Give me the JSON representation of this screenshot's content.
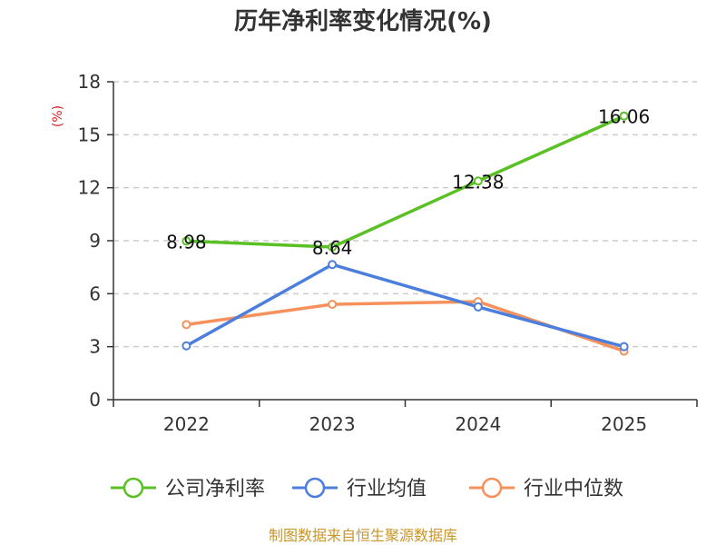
{
  "chart_data": {
    "type": "line",
    "title": "历年净利率变化情况(%)",
    "ylabel": "(%)",
    "xlabel": "",
    "categories": [
      "2022",
      "2023",
      "2024",
      "2025"
    ],
    "ylim": [
      0,
      18
    ],
    "yticks": [
      0,
      3,
      6,
      9,
      12,
      15,
      18
    ],
    "grid": true,
    "legend_position": "bottom",
    "series": [
      {
        "name": "公司净利率",
        "values": [
          8.98,
          8.64,
          12.38,
          16.06
        ],
        "color": "#5ac124",
        "data_labels": [
          "8.98",
          "8.64",
          "12.38",
          "16.06"
        ]
      },
      {
        "name": "行业均值",
        "values": [
          3.05,
          7.65,
          5.25,
          3.0
        ],
        "color": "#4c7fdc"
      },
      {
        "name": "行业中位数",
        "values": [
          4.25,
          5.4,
          5.55,
          2.75
        ],
        "color": "#f7915c"
      }
    ]
  },
  "source": "制图数据来自恒生聚源数据库"
}
